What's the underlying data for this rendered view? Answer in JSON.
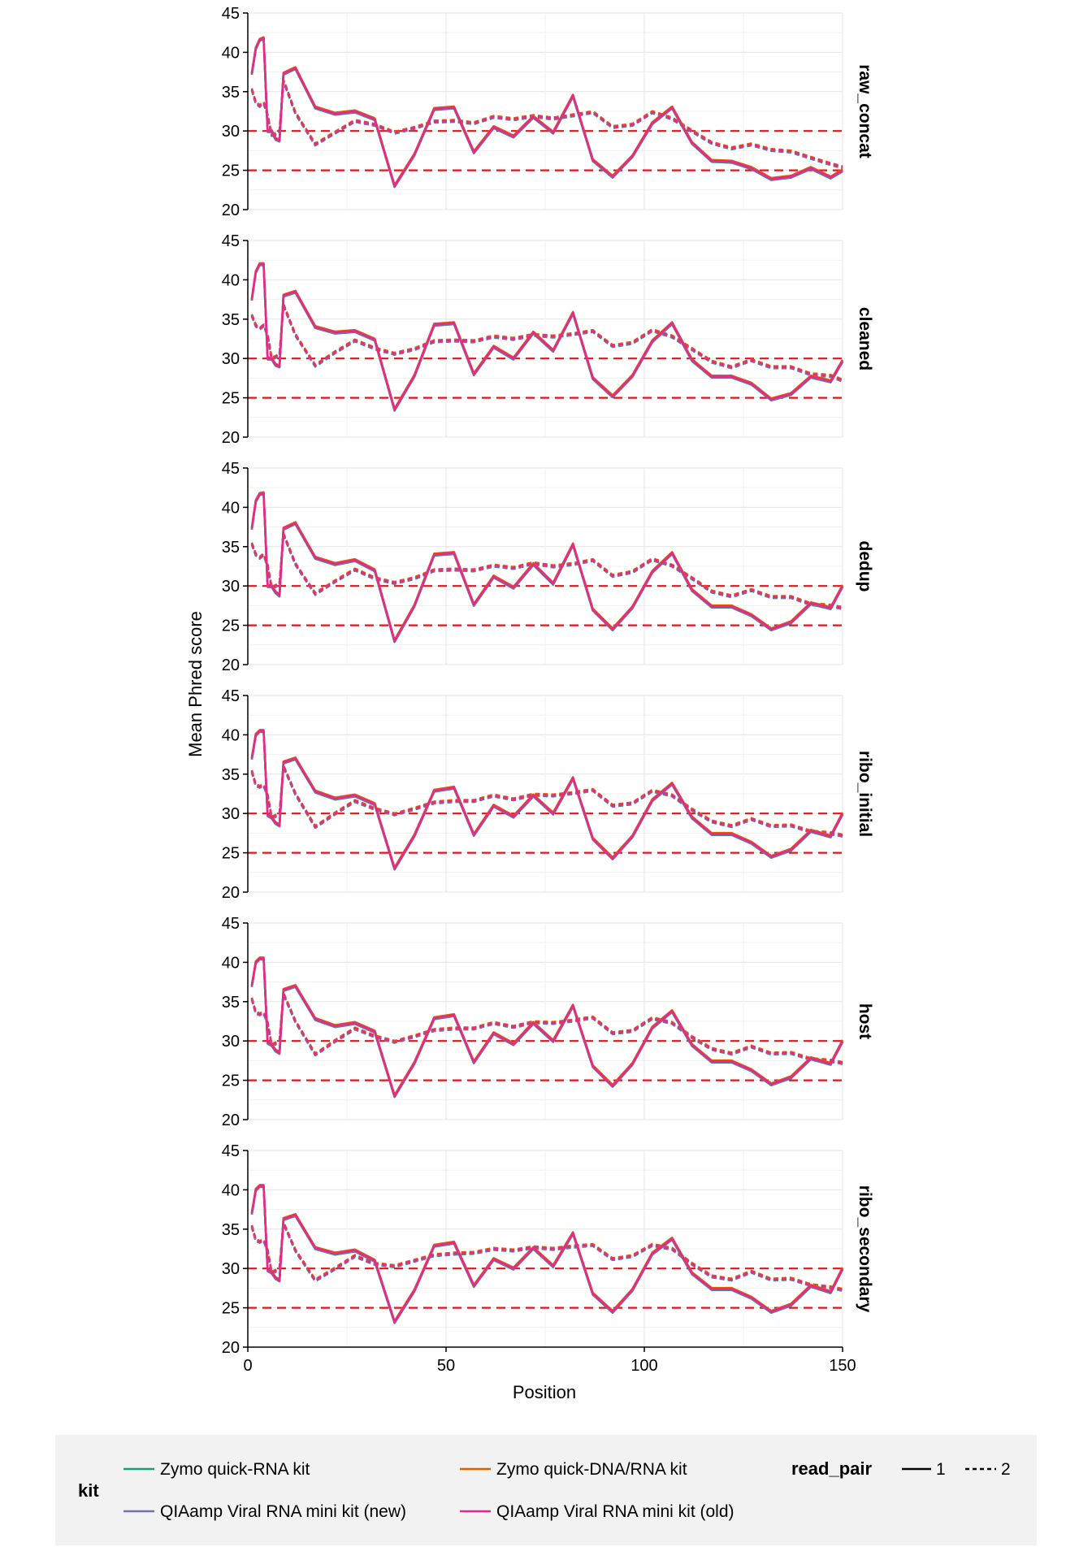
{
  "chart_data": {
    "type": "line",
    "ylabel": "Mean Phred score",
    "xlabel": "Position",
    "xlim": [
      0,
      150
    ],
    "ylim": [
      20,
      45
    ],
    "x_ticks": [
      0,
      50,
      100,
      150
    ],
    "y_ticks": [
      20,
      25,
      30,
      35,
      40,
      45
    ],
    "reference_lines": [
      25,
      30
    ],
    "reference_color": "#e8121b",
    "grid": true,
    "legend": {
      "placement": "bottom",
      "kit_title": "kit",
      "read_pair_title": "read_pair",
      "kits": [
        {
          "name": "Zymo quick-RNA kit",
          "color": "#1b9e77"
        },
        {
          "name": "Zymo quick-DNA/RNA kit",
          "color": "#d95f02"
        },
        {
          "name": "QIAamp Viral RNA mini kit (new)",
          "color": "#7570b3"
        },
        {
          "name": "QIAamp Viral RNA mini kit (old)",
          "color": "#e7298a"
        }
      ],
      "read_pairs": [
        {
          "name": "1",
          "dash": "solid"
        },
        {
          "name": "2",
          "dash": "dashed"
        }
      ]
    },
    "x": [
      1,
      2,
      3,
      4,
      5,
      6,
      7,
      8,
      9,
      12,
      17,
      22,
      27,
      32,
      37,
      42,
      47,
      52,
      57,
      62,
      67,
      72,
      77,
      82,
      87,
      92,
      97,
      102,
      107,
      112,
      117,
      122,
      127,
      132,
      137,
      142,
      147,
      150
    ],
    "facets": [
      {
        "name": "raw_concat",
        "read1": [
          37.3,
          40.5,
          41.6,
          41.8,
          30.0,
          30.0,
          29.0,
          28.8,
          37.3,
          38.0,
          33.0,
          32.2,
          32.5,
          31.5,
          23.0,
          27.0,
          32.8,
          33.0,
          27.3,
          30.5,
          29.3,
          31.8,
          29.8,
          34.5,
          26.3,
          24.2,
          26.8,
          31.0,
          33.0,
          28.5,
          26.2,
          26.1,
          25.3,
          23.9,
          24.2,
          25.3,
          24.1,
          25.0
        ],
        "read2": [
          35.3,
          33.6,
          33.2,
          33.6,
          32.0,
          29.5,
          29.6,
          30.0,
          36.4,
          32.3,
          28.3,
          29.8,
          31.3,
          30.8,
          29.8,
          30.4,
          31.2,
          31.3,
          31.0,
          31.8,
          31.5,
          31.9,
          31.6,
          32.0,
          32.4,
          30.5,
          30.8,
          32.4,
          31.6,
          30.0,
          28.5,
          27.8,
          28.3,
          27.6,
          27.4,
          26.6,
          25.8,
          25.4
        ]
      },
      {
        "name": "cleaned",
        "read1": [
          37.5,
          41.0,
          42.0,
          42.0,
          30.0,
          30.0,
          29.2,
          29.0,
          38.0,
          38.5,
          34.0,
          33.3,
          33.5,
          32.4,
          23.5,
          27.8,
          34.3,
          34.5,
          28.0,
          31.5,
          30.0,
          33.3,
          31.0,
          35.8,
          27.5,
          25.2,
          27.8,
          32.2,
          34.5,
          29.8,
          27.7,
          27.7,
          26.8,
          24.8,
          25.5,
          27.7,
          27.1,
          29.7
        ],
        "read2": [
          35.5,
          34.2,
          33.8,
          34.2,
          33.0,
          30.0,
          30.2,
          30.5,
          36.8,
          33.0,
          29.1,
          30.8,
          32.3,
          31.3,
          30.6,
          31.2,
          32.2,
          32.3,
          32.2,
          32.8,
          32.5,
          33.0,
          32.8,
          33.1,
          33.5,
          31.6,
          32.0,
          33.6,
          32.8,
          31.2,
          29.6,
          28.9,
          29.8,
          28.9,
          28.9,
          28.0,
          27.8,
          27.2
        ]
      },
      {
        "name": "dedup",
        "read1": [
          37.3,
          40.8,
          41.7,
          41.8,
          30.0,
          30.0,
          29.2,
          28.8,
          37.3,
          38.0,
          33.6,
          32.8,
          33.3,
          32.0,
          23.0,
          27.5,
          34.0,
          34.2,
          27.6,
          31.2,
          29.8,
          32.8,
          30.3,
          35.3,
          27.0,
          24.5,
          27.3,
          31.8,
          34.2,
          29.5,
          27.4,
          27.4,
          26.3,
          24.5,
          25.4,
          27.8,
          27.2,
          30.0
        ],
        "read2": [
          35.4,
          34.0,
          33.6,
          34.0,
          32.6,
          29.8,
          30.0,
          30.3,
          36.6,
          32.8,
          29.0,
          30.6,
          32.1,
          31.0,
          30.4,
          31.0,
          32.0,
          32.1,
          32.0,
          32.6,
          32.3,
          32.9,
          32.5,
          32.8,
          33.3,
          31.3,
          31.8,
          33.4,
          32.6,
          31.0,
          29.3,
          28.7,
          29.5,
          28.6,
          28.6,
          27.7,
          27.5,
          27.2
        ]
      },
      {
        "name": "ribo_initial",
        "read1": [
          37.0,
          40.0,
          40.5,
          40.5,
          29.8,
          29.5,
          28.8,
          28.5,
          36.5,
          37.0,
          32.8,
          31.9,
          32.3,
          31.2,
          23.0,
          27.2,
          32.9,
          33.3,
          27.3,
          31.0,
          29.6,
          32.3,
          30.0,
          34.5,
          26.8,
          24.3,
          27.1,
          31.7,
          33.8,
          29.5,
          27.4,
          27.4,
          26.3,
          24.5,
          25.4,
          27.8,
          27.1,
          30.0
        ],
        "read2": [
          35.4,
          33.6,
          33.4,
          33.6,
          32.3,
          29.5,
          29.7,
          30.0,
          36.0,
          32.5,
          28.3,
          30.0,
          31.6,
          30.6,
          29.9,
          30.6,
          31.4,
          31.6,
          31.6,
          32.3,
          31.8,
          32.4,
          32.3,
          32.6,
          33.0,
          31.0,
          31.3,
          32.9,
          32.3,
          30.5,
          29.0,
          28.4,
          29.3,
          28.4,
          28.5,
          27.7,
          27.5,
          27.2
        ]
      },
      {
        "name": "host",
        "read1": [
          37.0,
          40.0,
          40.5,
          40.5,
          29.8,
          29.5,
          28.8,
          28.5,
          36.5,
          37.0,
          32.8,
          31.9,
          32.3,
          31.2,
          23.0,
          27.2,
          32.9,
          33.3,
          27.3,
          31.0,
          29.6,
          32.3,
          30.0,
          34.5,
          26.8,
          24.3,
          27.1,
          31.7,
          33.8,
          29.5,
          27.4,
          27.4,
          26.3,
          24.5,
          25.4,
          27.8,
          27.1,
          30.0
        ],
        "read2": [
          35.4,
          33.6,
          33.4,
          33.6,
          32.3,
          29.5,
          29.7,
          30.0,
          36.0,
          32.5,
          28.3,
          30.0,
          31.6,
          30.6,
          29.9,
          30.6,
          31.4,
          31.6,
          31.6,
          32.3,
          31.8,
          32.4,
          32.3,
          32.6,
          33.0,
          31.0,
          31.3,
          32.9,
          32.3,
          30.5,
          29.0,
          28.4,
          29.3,
          28.4,
          28.5,
          27.7,
          27.5,
          27.2
        ]
      },
      {
        "name": "ribo_secondary",
        "read1": [
          37.0,
          40.0,
          40.5,
          40.5,
          29.8,
          29.5,
          28.8,
          28.5,
          36.3,
          36.8,
          32.6,
          31.9,
          32.3,
          31.0,
          23.2,
          27.2,
          32.9,
          33.3,
          27.8,
          31.2,
          30.0,
          32.6,
          30.3,
          34.5,
          26.8,
          24.5,
          27.3,
          31.9,
          33.8,
          29.4,
          27.4,
          27.4,
          26.3,
          24.5,
          25.4,
          27.8,
          27.0,
          30.0
        ],
        "read2": [
          35.4,
          33.6,
          33.4,
          33.6,
          32.3,
          29.5,
          29.7,
          30.0,
          35.8,
          32.3,
          28.5,
          30.0,
          31.6,
          30.6,
          30.3,
          31.0,
          31.7,
          31.9,
          32.0,
          32.5,
          32.3,
          32.7,
          32.5,
          32.8,
          33.0,
          31.2,
          31.6,
          33.0,
          32.5,
          30.6,
          29.0,
          28.6,
          29.6,
          28.6,
          28.7,
          27.9,
          27.6,
          27.3
        ]
      }
    ]
  }
}
